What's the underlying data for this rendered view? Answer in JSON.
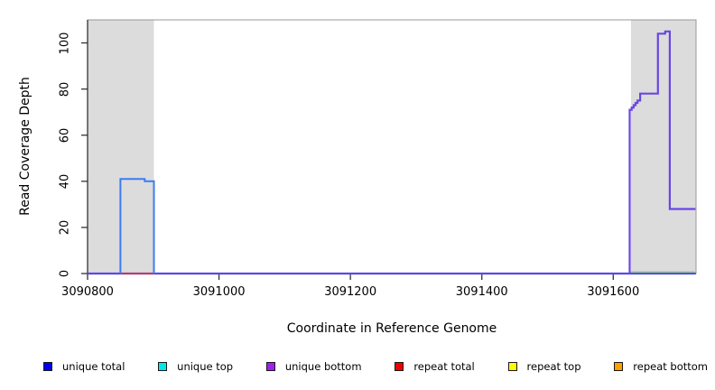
{
  "chart_data": {
    "type": "line",
    "subtype": "step-coverage",
    "title": "",
    "xlabel": "Coordinate in Reference Genome",
    "ylabel": "Read Coverage Depth",
    "xlim": [
      3090800,
      3091726
    ],
    "ylim": [
      0,
      110
    ],
    "grid": false,
    "x_ticks": {
      "values": [
        3090800,
        3091000,
        3091200,
        3091400,
        3091600
      ],
      "labels": [
        "3090800",
        "3091000",
        "3091200",
        "3091400",
        "3091600"
      ]
    },
    "y_ticks": {
      "values": [
        0,
        20,
        40,
        60,
        80,
        100
      ],
      "labels": [
        "0",
        "20",
        "40",
        "60",
        "80",
        "100"
      ]
    },
    "shaded_regions": [
      {
        "name": "repeat-region-left",
        "x0": 3090800,
        "x1": 3090901,
        "color": "#dcdcdc"
      },
      {
        "name": "repeat-region-right",
        "x0": 3091627,
        "x1": 3091726,
        "color": "#dcdcdc"
      }
    ],
    "series": [
      {
        "name": "unique-baseline",
        "color": "#5b49e8",
        "width": 2.2,
        "points": [
          [
            3090800,
            0
          ],
          [
            3091725,
            0
          ]
        ]
      },
      {
        "name": "repeat-total-segment",
        "color": "#e43434",
        "width": 1.6,
        "points": [
          [
            3090850,
            0
          ],
          [
            3090901,
            0
          ]
        ]
      },
      {
        "name": "repeat-green-segment",
        "color": "#8fce8f",
        "width": 1.6,
        "points": [
          [
            3091627,
            0.7
          ],
          [
            3091724,
            0.7
          ]
        ]
      },
      {
        "name": "unique-total-bump",
        "color": "#3c7cf0",
        "width": 2,
        "points": [
          [
            3090850,
            0
          ],
          [
            3090850,
            41
          ],
          [
            3090887,
            41
          ],
          [
            3090887,
            40
          ],
          [
            3090901,
            40
          ],
          [
            3090901,
            0
          ]
        ]
      },
      {
        "name": "unique-bottom-peak",
        "color": "#6a46e2",
        "width": 2.2,
        "points": [
          [
            3091625,
            0
          ],
          [
            3091625,
            71
          ],
          [
            3091628,
            71
          ],
          [
            3091628,
            72
          ],
          [
            3091631,
            72
          ],
          [
            3091631,
            73
          ],
          [
            3091634,
            73
          ],
          [
            3091634,
            74
          ],
          [
            3091637,
            74
          ],
          [
            3091637,
            75
          ],
          [
            3091641,
            75
          ],
          [
            3091641,
            78
          ],
          [
            3091668,
            78
          ],
          [
            3091668,
            104
          ],
          [
            3091679,
            104
          ],
          [
            3091679,
            105
          ],
          [
            3091686,
            105
          ],
          [
            3091686,
            28
          ],
          [
            3091725,
            28
          ]
        ]
      }
    ],
    "legend": {
      "position": "bottom",
      "entries": [
        {
          "label": "unique total",
          "color": "#0000f0"
        },
        {
          "label": "unique top",
          "color": "#00e8e8"
        },
        {
          "label": "unique bottom",
          "color": "#a020f0"
        },
        {
          "label": "repeat total",
          "color": "#ee0000"
        },
        {
          "label": "repeat top",
          "color": "#ffff00"
        },
        {
          "label": "repeat bottom",
          "color": "#ffa000"
        }
      ]
    },
    "axis_colors": {
      "box": "#999999",
      "axis": "#333333",
      "tick": "#333333"
    }
  }
}
